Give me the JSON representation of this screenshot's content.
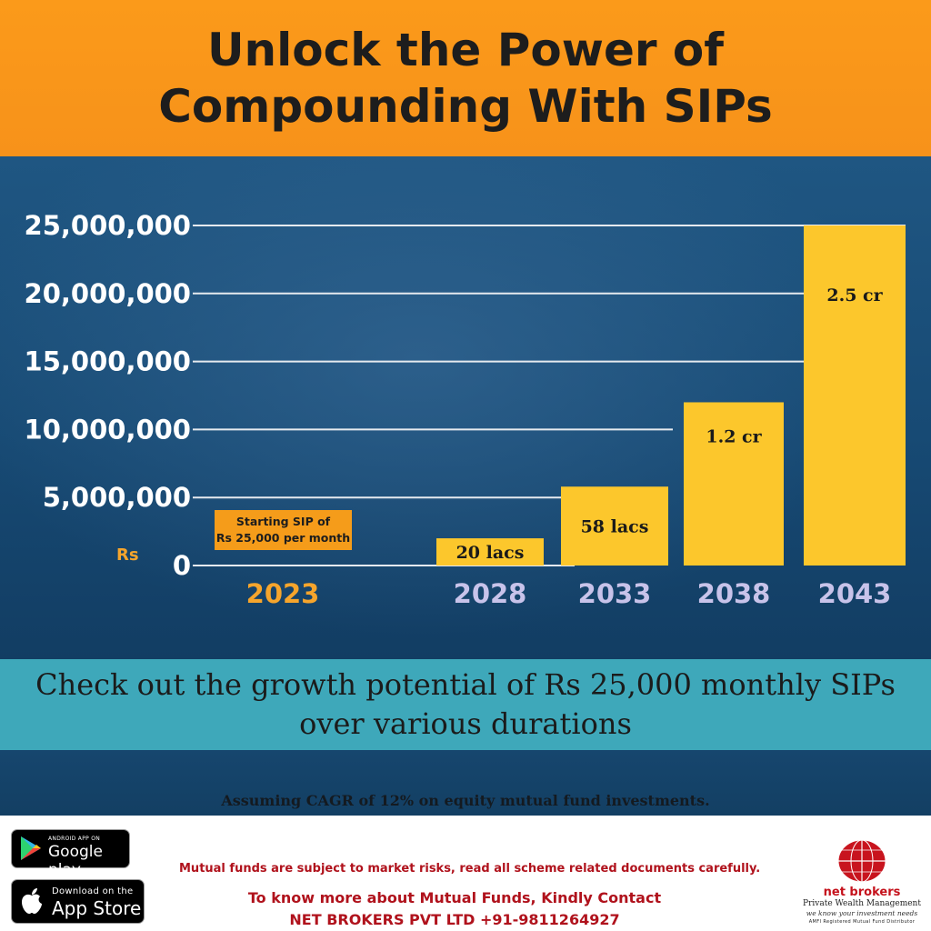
{
  "header": {
    "title": "Unlock the Power of Compounding With SIPs"
  },
  "chart_data": {
    "type": "bar",
    "title": "",
    "xlabel": "",
    "ylabel": "Rs",
    "ylim": [
      0,
      25000000
    ],
    "y_ticks": [
      0,
      5000000,
      10000000,
      15000000,
      20000000,
      25000000
    ],
    "y_tick_labels": [
      "0",
      "5,000,000",
      "10,000,000",
      "15,000,000",
      "20,000,000",
      "25,000,000"
    ],
    "categories": [
      "2023",
      "2028",
      "2033",
      "2038",
      "2043"
    ],
    "values": [
      0,
      2000000,
      5800000,
      12000000,
      25000000
    ],
    "bar_labels": [
      "",
      "20 lacs",
      "58 lacs",
      "1.2 cr",
      "2.5 cr"
    ],
    "grid": true,
    "bar_color": "#fcc72c",
    "annotation": "Starting SIP of Rs 25,000 per month"
  },
  "annotation": {
    "line1": "Starting SIP of",
    "line2": "Rs 25,000 per month"
  },
  "band": {
    "text": "Check out the growth potential of Rs 25,000 monthly SIPs over various durations"
  },
  "assumption": "Assuming CAGR of 12% on equity mutual fund investments.",
  "footer": {
    "google_small": "ANDROID APP ON",
    "google_big": "Google play",
    "apple_small": "Download on the",
    "apple_big": "App Store",
    "disclaimer": "Mutual funds are subject to market risks, read all scheme related documents carefully.",
    "contact_line1": "To know more about Mutual Funds, Kindly Contact",
    "contact_line2": "NET BROKERS PVT LTD  +91-9811264927",
    "logo_name": "net brokers",
    "logo_sub": "Private Wealth Management",
    "logo_tag": "we know your investment needs",
    "logo_amfi": "AMFI Registered Mutual Fund Distributor"
  },
  "colors": {
    "orange": "#f7921a",
    "navy": "#1a4d77",
    "teal": "#3ea8ba",
    "yellow": "#fcc72c",
    "red": "#b0121c"
  }
}
